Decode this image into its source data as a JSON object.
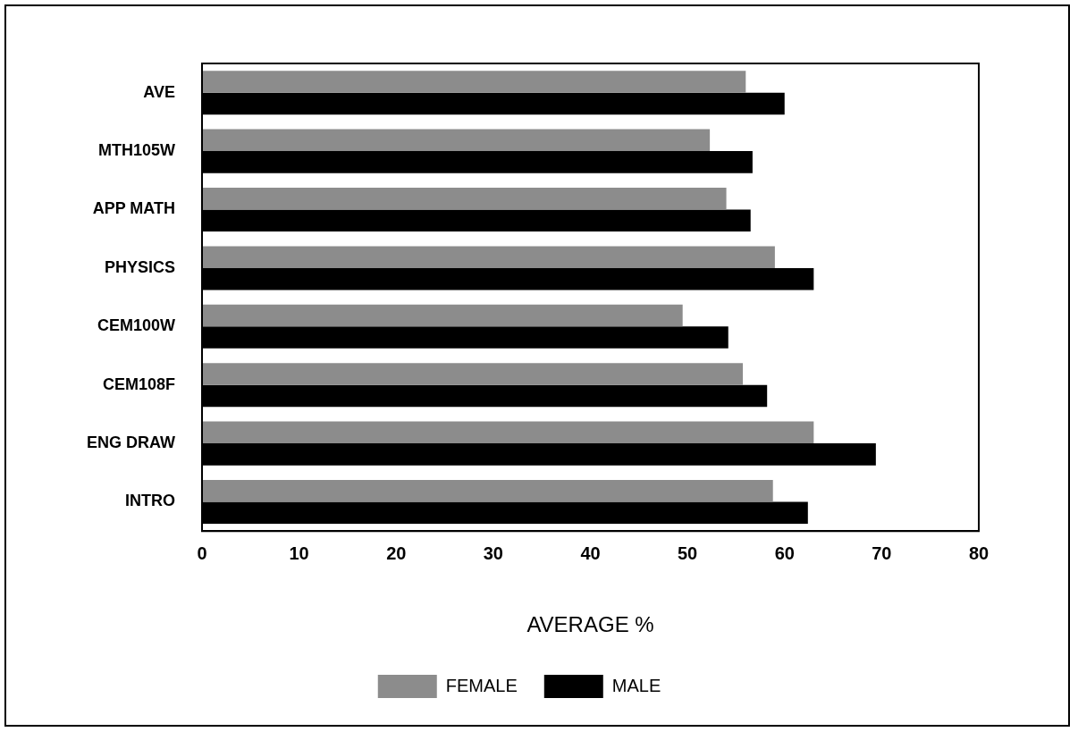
{
  "chart_data": {
    "type": "bar",
    "orientation": "horizontal",
    "xlabel": "AVERAGE %",
    "categories": [
      "AVE",
      "MTH105W",
      "APP MATH",
      "PHYSICS",
      "CEM100W",
      "CEM108F",
      "ENG DRAW",
      "INTRO"
    ],
    "series": [
      {
        "name": "FEMALE",
        "color": "#8c8c8c",
        "values": [
          56,
          52.3,
          54,
          59,
          49.5,
          55.7,
          63,
          58.8
        ]
      },
      {
        "name": "MALE",
        "color": "#000000",
        "values": [
          60,
          56.7,
          56.5,
          63,
          54.2,
          58.2,
          69.4,
          62.4
        ]
      }
    ],
    "xlim": [
      0,
      80
    ],
    "xticks": [
      0,
      10,
      20,
      30,
      40,
      50,
      60,
      70,
      80
    ],
    "grid": false,
    "legend": "bottom"
  }
}
